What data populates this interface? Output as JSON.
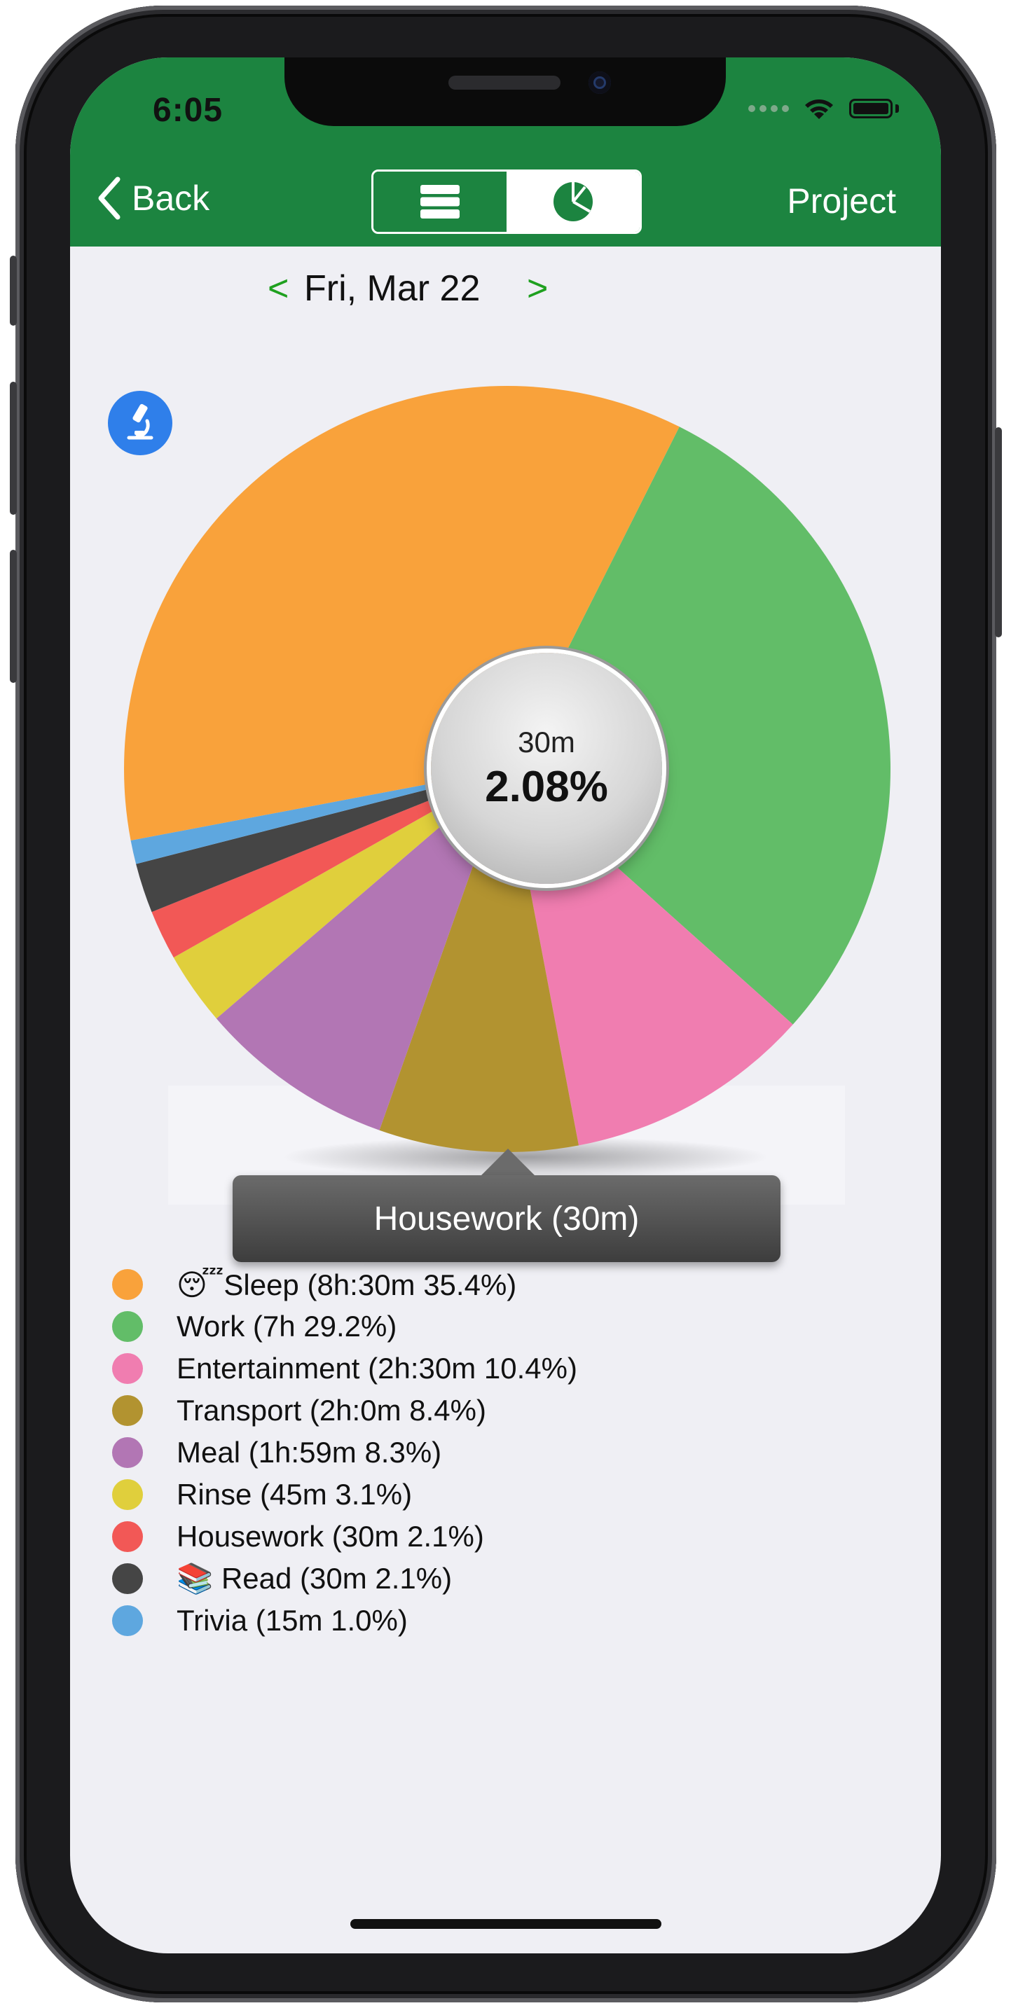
{
  "status_bar": {
    "time": "6:05"
  },
  "navbar": {
    "back_label": "Back",
    "project_label": "Project",
    "segments": [
      "list-icon",
      "pie-chart-icon"
    ],
    "active_segment": "pie-chart-icon",
    "color": "#1c8440"
  },
  "date_nav": {
    "prev": "<",
    "label": "Fri, Mar 22",
    "next": ">"
  },
  "center": {
    "duration": "30m",
    "percent": "2.08%"
  },
  "tooltip": {
    "text": "Housework (30m)"
  },
  "chart_data": {
    "type": "pie",
    "title": "",
    "slices": [
      {
        "name": "Sleep",
        "label": "😴Sleep (8h:30m 35.4%)",
        "value": 35.4,
        "color": "#f9a23b"
      },
      {
        "name": "Work",
        "label": "Work (7h 29.2%)",
        "value": 29.2,
        "color": "#62bd68"
      },
      {
        "name": "Entertainment",
        "label": "Entertainment (2h:30m 10.4%)",
        "value": 10.4,
        "color": "#f07db0"
      },
      {
        "name": "Transport",
        "label": "Transport (2h:0m 8.4%)",
        "value": 8.4,
        "color": "#b29330"
      },
      {
        "name": "Meal",
        "label": "Meal (1h:59m 8.3%)",
        "value": 8.3,
        "color": "#b276b4"
      },
      {
        "name": "Rinse",
        "label": "Rinse (45m 3.1%)",
        "value": 3.1,
        "color": "#e0cf3c"
      },
      {
        "name": "Housework",
        "label": "Housework (30m 2.1%)",
        "value": 2.1,
        "color": "#f25856"
      },
      {
        "name": "Read",
        "label": "📚 Read (30m 2.1%)",
        "value": 2.1,
        "color": "#454545"
      },
      {
        "name": "Trivia",
        "label": "Trivia (15m 1.0%)",
        "value": 1.0,
        "color": "#5ea7df"
      }
    ],
    "selected": "Housework",
    "legend_position": "bottom-left"
  }
}
